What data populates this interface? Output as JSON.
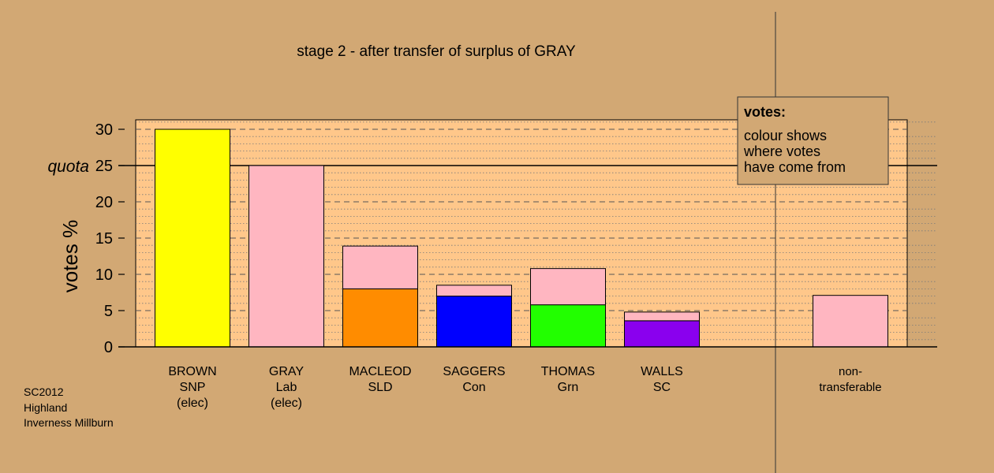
{
  "chart_data": {
    "type": "bar",
    "title": "stage 2 - after transfer of surplus of GRAY",
    "ylabel": "votes %",
    "ylim": [
      0,
      31.5
    ],
    "yticks": [
      0,
      5,
      10,
      15,
      20,
      25,
      30
    ],
    "quota": {
      "label": "quota",
      "value": 25
    },
    "categories": [
      {
        "lines": [
          "BROWN",
          "SNP",
          "(elec)"
        ]
      },
      {
        "lines": [
          "GRAY",
          "Lab",
          "(elec)"
        ]
      },
      {
        "lines": [
          "MACLEOD",
          "SLD"
        ]
      },
      {
        "lines": [
          "SAGGERS",
          "Con"
        ]
      },
      {
        "lines": [
          "THOMAS",
          "Grn"
        ]
      },
      {
        "lines": [
          "WALLS",
          "SC"
        ]
      },
      {
        "lines": [
          "non-",
          "transferable"
        ]
      }
    ],
    "bars": [
      {
        "category": 0,
        "segments": [
          {
            "source": "BROWN",
            "color": "#ffff00",
            "value": 30.0
          }
        ]
      },
      {
        "category": 1,
        "segments": [
          {
            "source": "GRAY",
            "color": "#ffb6c1",
            "value": 25.0
          }
        ]
      },
      {
        "category": 2,
        "segments": [
          {
            "source": "MACLEOD",
            "color": "#ff8c00",
            "value": 8.0
          },
          {
            "source": "GRAY",
            "color": "#ffb6c1",
            "value": 5.9
          }
        ]
      },
      {
        "category": 3,
        "segments": [
          {
            "source": "SAGGERS",
            "color": "#0000ff",
            "value": 7.0
          },
          {
            "source": "GRAY",
            "color": "#ffb6c1",
            "value": 1.5
          }
        ]
      },
      {
        "category": 4,
        "segments": [
          {
            "source": "THOMAS",
            "color": "#22ff00",
            "value": 5.8
          },
          {
            "source": "GRAY",
            "color": "#ffb6c1",
            "value": 5.0
          }
        ]
      },
      {
        "category": 5,
        "segments": [
          {
            "source": "WALLS",
            "color": "#8a00ee",
            "value": 3.6
          },
          {
            "source": "GRAY",
            "color": "#ffb6c1",
            "value": 1.2
          }
        ]
      },
      {
        "category": 6,
        "segments": [
          {
            "source": "GRAY",
            "color": "#ffb6c1",
            "value": 7.1
          }
        ]
      }
    ],
    "legend": {
      "title": "votes:",
      "lines": [
        "colour shows",
        "where votes",
        "have come from"
      ],
      "position": "top-right"
    },
    "grid": true,
    "colors": {
      "background": "#d2a874",
      "plot_area": "#ffc78a",
      "outline": "#000000"
    }
  },
  "footer": {
    "lines": [
      "SC2012",
      "Highland",
      "Inverness Millburn"
    ]
  }
}
